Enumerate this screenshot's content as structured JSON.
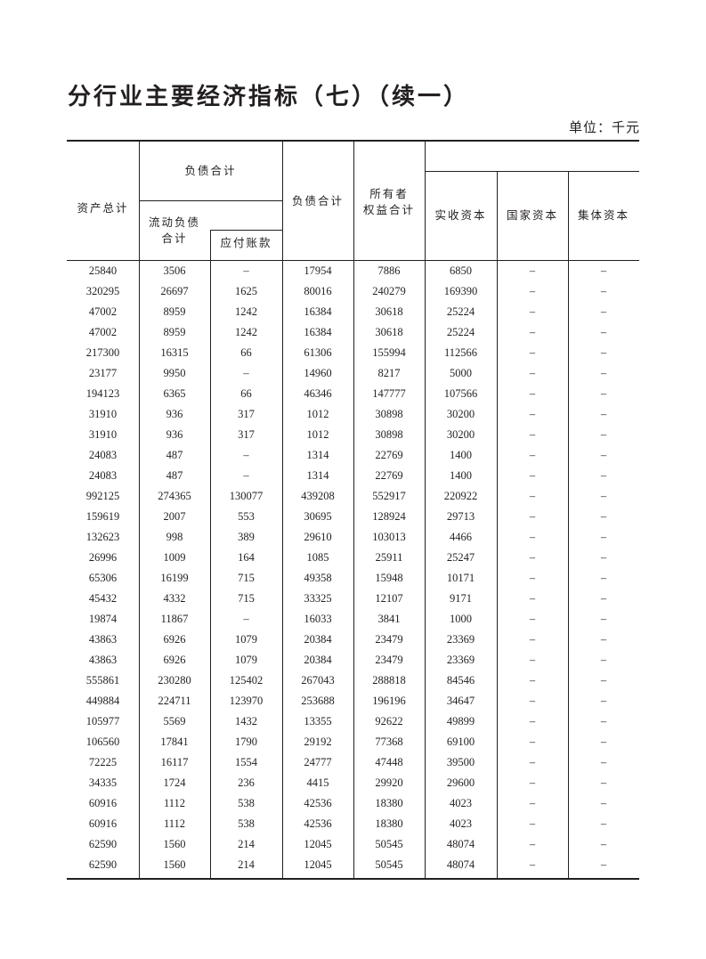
{
  "title": "分行业主要经济指标（七）（续一）",
  "unit": "单位：千元",
  "headers": {
    "total_assets": "资产总计",
    "liabilities_group": "负债合计",
    "current_liabilities_l1": "流动负债",
    "current_liabilities_l2": "合计",
    "accounts_payable": "应付账款",
    "total_liabilities": "负债合计",
    "equity_l1": "所有者",
    "equity_l2": "权益合计",
    "paid_in_capital": "实收资本",
    "state_capital": "国家资本",
    "collective_capital": "集体资本"
  },
  "rows": [
    [
      "25840",
      "3506",
      "–",
      "17954",
      "7886",
      "6850",
      "–",
      "–"
    ],
    [
      "320295",
      "26697",
      "1625",
      "80016",
      "240279",
      "169390",
      "–",
      "–"
    ],
    [
      "47002",
      "8959",
      "1242",
      "16384",
      "30618",
      "25224",
      "–",
      "–"
    ],
    [
      "47002",
      "8959",
      "1242",
      "16384",
      "30618",
      "25224",
      "–",
      "–"
    ],
    [
      "217300",
      "16315",
      "66",
      "61306",
      "155994",
      "112566",
      "–",
      "–"
    ],
    [
      "23177",
      "9950",
      "–",
      "14960",
      "8217",
      "5000",
      "–",
      "–"
    ],
    [
      "194123",
      "6365",
      "66",
      "46346",
      "147777",
      "107566",
      "–",
      "–"
    ],
    [
      "31910",
      "936",
      "317",
      "1012",
      "30898",
      "30200",
      "–",
      "–"
    ],
    [
      "31910",
      "936",
      "317",
      "1012",
      "30898",
      "30200",
      "–",
      "–"
    ],
    [
      "24083",
      "487",
      "–",
      "1314",
      "22769",
      "1400",
      "–",
      "–"
    ],
    [
      "24083",
      "487",
      "–",
      "1314",
      "22769",
      "1400",
      "–",
      "–"
    ],
    [
      "992125",
      "274365",
      "130077",
      "439208",
      "552917",
      "220922",
      "–",
      "–"
    ],
    [
      "159619",
      "2007",
      "553",
      "30695",
      "128924",
      "29713",
      "–",
      "–"
    ],
    [
      "132623",
      "998",
      "389",
      "29610",
      "103013",
      "4466",
      "–",
      "–"
    ],
    [
      "26996",
      "1009",
      "164",
      "1085",
      "25911",
      "25247",
      "–",
      "–"
    ],
    [
      "65306",
      "16199",
      "715",
      "49358",
      "15948",
      "10171",
      "–",
      "–"
    ],
    [
      "45432",
      "4332",
      "715",
      "33325",
      "12107",
      "9171",
      "–",
      "–"
    ],
    [
      "19874",
      "11867",
      "–",
      "16033",
      "3841",
      "1000",
      "–",
      "–"
    ],
    [
      "43863",
      "6926",
      "1079",
      "20384",
      "23479",
      "23369",
      "–",
      "–"
    ],
    [
      "43863",
      "6926",
      "1079",
      "20384",
      "23479",
      "23369",
      "–",
      "–"
    ],
    [
      "555861",
      "230280",
      "125402",
      "267043",
      "288818",
      "84546",
      "–",
      "–"
    ],
    [
      "449884",
      "224711",
      "123970",
      "253688",
      "196196",
      "34647",
      "–",
      "–"
    ],
    [
      "105977",
      "5569",
      "1432",
      "13355",
      "92622",
      "49899",
      "–",
      "–"
    ],
    [
      "106560",
      "17841",
      "1790",
      "29192",
      "77368",
      "69100",
      "–",
      "–"
    ],
    [
      "72225",
      "16117",
      "1554",
      "24777",
      "47448",
      "39500",
      "–",
      "–"
    ],
    [
      "34335",
      "1724",
      "236",
      "4415",
      "29920",
      "29600",
      "–",
      "–"
    ],
    [
      "60916",
      "1112",
      "538",
      "42536",
      "18380",
      "4023",
      "–",
      "–"
    ],
    [
      "60916",
      "1112",
      "538",
      "42536",
      "18380",
      "4023",
      "–",
      "–"
    ],
    [
      "62590",
      "1560",
      "214",
      "12045",
      "50545",
      "48074",
      "–",
      "–"
    ],
    [
      "62590",
      "1560",
      "214",
      "12045",
      "50545",
      "48074",
      "–",
      "–"
    ]
  ]
}
